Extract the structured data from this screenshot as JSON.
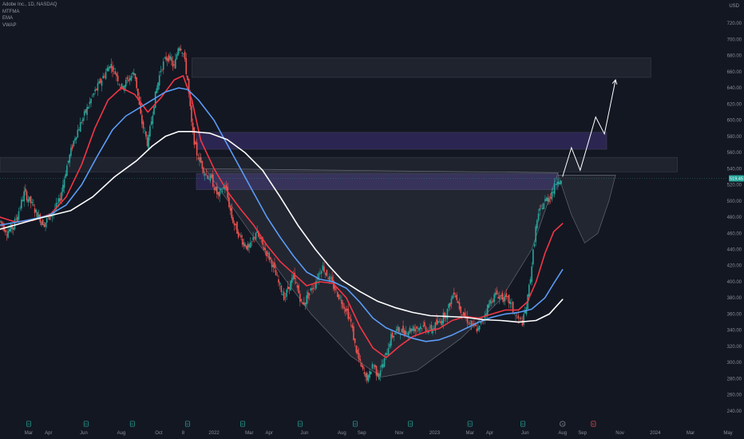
{
  "header": {
    "title": "Adobe Inc., 1D, NASDAQ",
    "indicators": [
      "MTFMA",
      "EMA",
      "VWAP"
    ],
    "currency": "USD"
  },
  "price_badge": "519.45",
  "colors": {
    "background": "#131722",
    "candle_up": "#26a69a",
    "candle_down": "#ef5350",
    "ema_fast": "#f23645",
    "ema_mid": "#5b9cf6",
    "vwap": "#ffffff",
    "zone_gray": "#2a2e39",
    "zone_purple": "#4a3a8c",
    "badge": "#26a69a",
    "event_dividend": "#26a69a",
    "event_split": "#ef5350"
  },
  "chart_data": {
    "type": "candlestick",
    "title": "Adobe Inc., 1D, NASDAQ",
    "y_axis": {
      "ticks": [
        240,
        260,
        280,
        300,
        320,
        340,
        360,
        380,
        400,
        420,
        440,
        460,
        480,
        500,
        520,
        540,
        560,
        580,
        600,
        620,
        640,
        660,
        680,
        700,
        720
      ],
      "tick_labels": [
        "240.00",
        "260.00",
        "280.00",
        "300.00",
        "320.00",
        "340.00",
        "360.00",
        "380.00",
        "400.00",
        "420.00",
        "440.00",
        "460.00",
        "480.00",
        "500.00",
        "520.00",
        "540.00",
        "560.00",
        "580.00",
        "600.00",
        "620.00",
        "640.00",
        "660.00",
        "680.00",
        "700.00",
        "720.00"
      ],
      "range": [
        228,
        735
      ]
    },
    "x_axis": {
      "ticks": [
        "Mar",
        "Apr",
        "Jun",
        "Aug",
        "Oct",
        "8",
        "2022",
        "Mar",
        "Apr",
        "Jun",
        "Aug",
        "Sep",
        "Nov",
        "2023",
        "Mar",
        "Apr",
        "Jun",
        "Aug",
        "Sep",
        "Nov",
        "2024",
        "Mar",
        "May"
      ],
      "positions": [
        2021.16,
        2021.25,
        2021.41,
        2021.58,
        2021.75,
        2021.86,
        2022.0,
        2022.16,
        2022.25,
        2022.41,
        2022.58,
        2022.67,
        2022.84,
        2023.0,
        2023.16,
        2023.25,
        2023.41,
        2023.58,
        2023.67,
        2023.84,
        2024.0,
        2024.16,
        2024.33
      ],
      "range": [
        2021.03,
        2024.33
      ]
    },
    "price_path": [
      [
        2021.03,
        475
      ],
      [
        2021.06,
        462
      ],
      [
        2021.09,
        468
      ],
      [
        2021.12,
        492
      ],
      [
        2021.14,
        510
      ],
      [
        2021.17,
        498
      ],
      [
        2021.2,
        482
      ],
      [
        2021.23,
        472
      ],
      [
        2021.27,
        486
      ],
      [
        2021.3,
        500
      ],
      [
        2021.33,
        540
      ],
      [
        2021.37,
        580
      ],
      [
        2021.41,
        605
      ],
      [
        2021.45,
        630
      ],
      [
        2021.49,
        650
      ],
      [
        2021.53,
        670
      ],
      [
        2021.56,
        655
      ],
      [
        2021.58,
        640
      ],
      [
        2021.61,
        650
      ],
      [
        2021.64,
        660
      ],
      [
        2021.67,
        600
      ],
      [
        2021.7,
        570
      ],
      [
        2021.73,
        625
      ],
      [
        2021.76,
        665
      ],
      [
        2021.79,
        680
      ],
      [
        2021.82,
        665
      ],
      [
        2021.84,
        695
      ],
      [
        2021.86,
        685
      ],
      [
        2021.88,
        650
      ],
      [
        2021.89,
        620
      ],
      [
        2021.9,
        590
      ],
      [
        2021.92,
        560
      ],
      [
        2021.96,
        535
      ],
      [
        2021.99,
        525
      ],
      [
        2022.02,
        505
      ],
      [
        2022.05,
        520
      ],
      [
        2022.08,
        480
      ],
      [
        2022.1,
        465
      ],
      [
        2022.13,
        450
      ],
      [
        2022.16,
        440
      ],
      [
        2022.19,
        462
      ],
      [
        2022.22,
        445
      ],
      [
        2022.26,
        425
      ],
      [
        2022.29,
        400
      ],
      [
        2022.32,
        380
      ],
      [
        2022.34,
        395
      ],
      [
        2022.36,
        405
      ],
      [
        2022.38,
        390
      ],
      [
        2022.4,
        370
      ],
      [
        2022.43,
        385
      ],
      [
        2022.46,
        400
      ],
      [
        2022.49,
        420
      ],
      [
        2022.51,
        410
      ],
      [
        2022.54,
        395
      ],
      [
        2022.57,
        380
      ],
      [
        2022.6,
        365
      ],
      [
        2022.62,
        350
      ],
      [
        2022.64,
        320
      ],
      [
        2022.66,
        300
      ],
      [
        2022.68,
        285
      ],
      [
        2022.7,
        280
      ],
      [
        2022.72,
        300
      ],
      [
        2022.74,
        285
      ],
      [
        2022.77,
        300
      ],
      [
        2022.8,
        330
      ],
      [
        2022.83,
        340
      ],
      [
        2022.86,
        338
      ],
      [
        2022.9,
        342
      ],
      [
        2022.94,
        345
      ],
      [
        2022.98,
        340
      ],
      [
        2023.02,
        350
      ],
      [
        2023.06,
        365
      ],
      [
        2023.09,
        390
      ],
      [
        2023.11,
        370
      ],
      [
        2023.14,
        355
      ],
      [
        2023.17,
        345
      ],
      [
        2023.2,
        340
      ],
      [
        2023.22,
        355
      ],
      [
        2023.25,
        375
      ],
      [
        2023.28,
        385
      ],
      [
        2023.31,
        380
      ],
      [
        2023.34,
        375
      ],
      [
        2023.37,
        355
      ],
      [
        2023.4,
        350
      ],
      [
        2023.42,
        375
      ],
      [
        2023.44,
        420
      ],
      [
        2023.46,
        470
      ],
      [
        2023.48,
        490
      ],
      [
        2023.5,
        500
      ],
      [
        2023.52,
        505
      ],
      [
        2023.54,
        515
      ],
      [
        2023.56,
        530
      ],
      [
        2023.58,
        520
      ]
    ],
    "series": [
      {
        "name": "",
        "role": "ema_fast",
        "color": "#f23645",
        "points": [
          [
            2021.03,
            480
          ],
          [
            2021.1,
            474
          ],
          [
            2021.18,
            476
          ],
          [
            2021.26,
            484
          ],
          [
            2021.33,
            505
          ],
          [
            2021.4,
            545
          ],
          [
            2021.46,
            590
          ],
          [
            2021.52,
            625
          ],
          [
            2021.58,
            640
          ],
          [
            2021.64,
            632
          ],
          [
            2021.7,
            610
          ],
          [
            2021.76,
            628
          ],
          [
            2021.82,
            650
          ],
          [
            2021.86,
            655
          ],
          [
            2021.9,
            625
          ],
          [
            2021.94,
            575
          ],
          [
            2022.0,
            540
          ],
          [
            2022.06,
            512
          ],
          [
            2022.12,
            490
          ],
          [
            2022.18,
            470
          ],
          [
            2022.24,
            445
          ],
          [
            2022.3,
            425
          ],
          [
            2022.36,
            410
          ],
          [
            2022.42,
            395
          ],
          [
            2022.48,
            400
          ],
          [
            2022.54,
            398
          ],
          [
            2022.6,
            380
          ],
          [
            2022.66,
            345
          ],
          [
            2022.72,
            318
          ],
          [
            2022.78,
            306
          ],
          [
            2022.84,
            320
          ],
          [
            2022.9,
            332
          ],
          [
            2022.96,
            338
          ],
          [
            2023.02,
            342
          ],
          [
            2023.08,
            352
          ],
          [
            2023.14,
            357
          ],
          [
            2023.2,
            355
          ],
          [
            2023.26,
            360
          ],
          [
            2023.32,
            365
          ],
          [
            2023.38,
            365
          ],
          [
            2023.42,
            375
          ],
          [
            2023.46,
            400
          ],
          [
            2023.5,
            435
          ],
          [
            2023.54,
            462
          ],
          [
            2023.58,
            472
          ]
        ]
      },
      {
        "name": "",
        "role": "ema_mid",
        "color": "#5b9cf6",
        "points": [
          [
            2021.03,
            470
          ],
          [
            2021.15,
            476
          ],
          [
            2021.25,
            482
          ],
          [
            2021.33,
            495
          ],
          [
            2021.4,
            520
          ],
          [
            2021.47,
            555
          ],
          [
            2021.54,
            588
          ],
          [
            2021.6,
            605
          ],
          [
            2021.66,
            615
          ],
          [
            2021.72,
            625
          ],
          [
            2021.78,
            635
          ],
          [
            2021.84,
            640
          ],
          [
            2021.88,
            638
          ],
          [
            2021.93,
            625
          ],
          [
            2022.0,
            600
          ],
          [
            2022.06,
            570
          ],
          [
            2022.12,
            540
          ],
          [
            2022.18,
            510
          ],
          [
            2022.24,
            480
          ],
          [
            2022.3,
            455
          ],
          [
            2022.36,
            432
          ],
          [
            2022.42,
            412
          ],
          [
            2022.48,
            403
          ],
          [
            2022.54,
            400
          ],
          [
            2022.6,
            392
          ],
          [
            2022.66,
            375
          ],
          [
            2022.72,
            355
          ],
          [
            2022.78,
            343
          ],
          [
            2022.84,
            336
          ],
          [
            2022.9,
            330
          ],
          [
            2022.96,
            326
          ],
          [
            2023.02,
            328
          ],
          [
            2023.08,
            334
          ],
          [
            2023.14,
            342
          ],
          [
            2023.2,
            350
          ],
          [
            2023.26,
            356
          ],
          [
            2023.32,
            360
          ],
          [
            2023.38,
            362
          ],
          [
            2023.44,
            366
          ],
          [
            2023.5,
            380
          ],
          [
            2023.54,
            398
          ],
          [
            2023.58,
            415
          ]
        ]
      },
      {
        "name": "",
        "role": "vwap",
        "color": "#ffffff",
        "points": [
          [
            2021.03,
            465
          ],
          [
            2021.2,
            478
          ],
          [
            2021.35,
            488
          ],
          [
            2021.45,
            505
          ],
          [
            2021.55,
            530
          ],
          [
            2021.65,
            550
          ],
          [
            2021.72,
            568
          ],
          [
            2021.78,
            580
          ],
          [
            2021.84,
            586
          ],
          [
            2021.9,
            586
          ],
          [
            2021.98,
            584
          ],
          [
            2022.06,
            576
          ],
          [
            2022.14,
            560
          ],
          [
            2022.22,
            538
          ],
          [
            2022.3,
            505
          ],
          [
            2022.38,
            470
          ],
          [
            2022.46,
            440
          ],
          [
            2022.52,
            420
          ],
          [
            2022.58,
            402
          ],
          [
            2022.66,
            388
          ],
          [
            2022.74,
            376
          ],
          [
            2022.82,
            368
          ],
          [
            2022.9,
            362
          ],
          [
            2022.98,
            358
          ],
          [
            2023.06,
            357
          ],
          [
            2023.14,
            356
          ],
          [
            2023.22,
            353
          ],
          [
            2023.3,
            352
          ],
          [
            2023.38,
            350
          ],
          [
            2023.46,
            352
          ],
          [
            2023.52,
            360
          ],
          [
            2023.58,
            378
          ]
        ]
      }
    ],
    "zones": [
      {
        "color": "#2a2e39",
        "x": [
          2021.9,
          2023.98
        ],
        "y": [
          653,
          677
        ]
      },
      {
        "color": "#2a2e39",
        "x": [
          2021.03,
          2024.1
        ],
        "y": [
          536,
          554
        ]
      },
      {
        "color": "#4a3a8c",
        "x": [
          2021.92,
          2023.78
        ],
        "y": [
          564,
          585
        ]
      },
      {
        "color": "#4a3a8c",
        "x": [
          2021.92,
          2023.56
        ],
        "y": [
          514,
          534
        ]
      }
    ],
    "patterns": [
      {
        "kind": "cup",
        "points": [
          [
            2021.96,
            540
          ],
          [
            2022.18,
            455
          ],
          [
            2022.44,
            360
          ],
          [
            2022.62,
            308
          ],
          [
            2022.76,
            282
          ],
          [
            2022.92,
            290
          ],
          [
            2023.12,
            330
          ],
          [
            2023.3,
            378
          ],
          [
            2023.44,
            440
          ],
          [
            2023.56,
            535
          ]
        ]
      },
      {
        "kind": "handle",
        "points": [
          [
            2023.56,
            532
          ],
          [
            2023.62,
            483
          ],
          [
            2023.68,
            448
          ],
          [
            2023.74,
            460
          ],
          [
            2023.79,
            500
          ],
          [
            2023.82,
            532
          ]
        ]
      }
    ],
    "projection": [
      [
        2023.58,
        530
      ],
      [
        2023.62,
        566
      ],
      [
        2023.66,
        538
      ],
      [
        2023.73,
        604
      ],
      [
        2023.77,
        583
      ],
      [
        2023.82,
        650
      ]
    ],
    "level_line": {
      "value": 528
    },
    "events": [
      {
        "x": 2021.16,
        "kind": "dividend",
        "label": "D"
      },
      {
        "x": 2021.42,
        "kind": "dividend",
        "label": "D"
      },
      {
        "x": 2021.63,
        "kind": "dividend",
        "label": "D"
      },
      {
        "x": 2021.88,
        "kind": "dividend",
        "label": "D"
      },
      {
        "x": 2022.13,
        "kind": "dividend",
        "label": "D"
      },
      {
        "x": 2022.39,
        "kind": "dividend",
        "label": "D"
      },
      {
        "x": 2022.64,
        "kind": "dividend",
        "label": "D"
      },
      {
        "x": 2022.89,
        "kind": "dividend",
        "label": "D"
      },
      {
        "x": 2023.16,
        "kind": "dividend",
        "label": "D"
      },
      {
        "x": 2023.4,
        "kind": "dividend",
        "label": "D"
      },
      {
        "x": 2023.58,
        "kind": "split",
        "label": "4"
      },
      {
        "x": 2023.72,
        "kind": "earnings",
        "label": "E"
      }
    ]
  }
}
